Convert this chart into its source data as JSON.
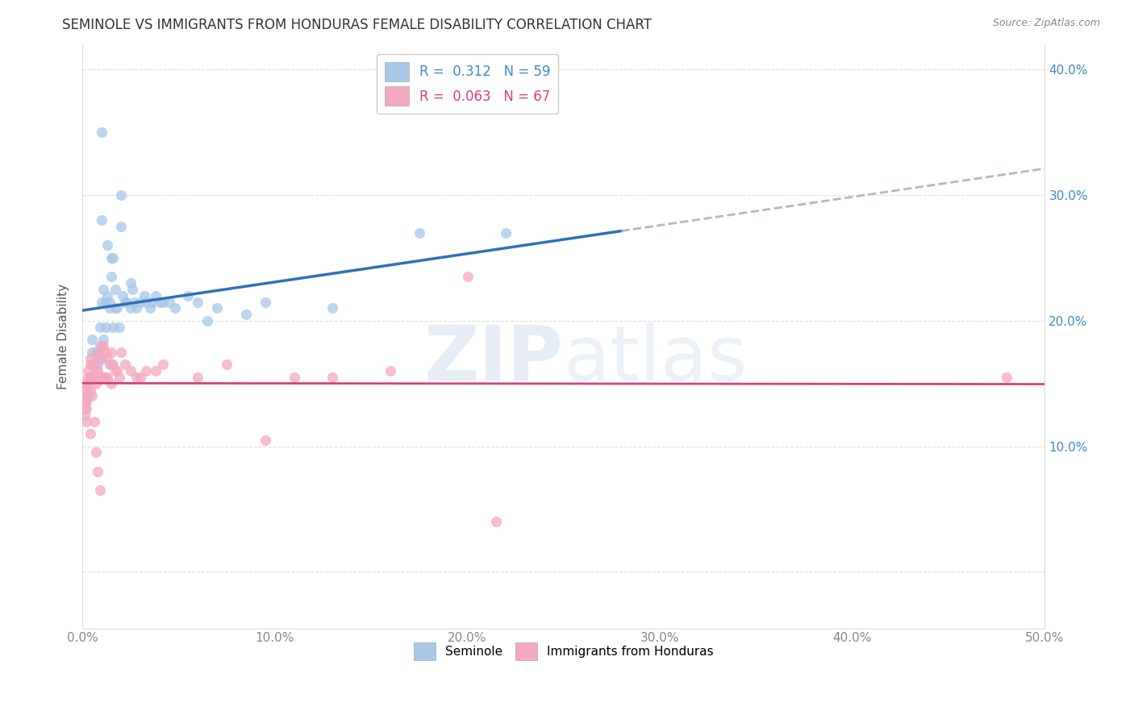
{
  "title": "SEMINOLE VS IMMIGRANTS FROM HONDURAS FEMALE DISABILITY CORRELATION CHART",
  "source": "Source: ZipAtlas.com",
  "ylabel": "Female Disability",
  "xlim": [
    0.0,
    0.5
  ],
  "ylim": [
    -0.045,
    0.42
  ],
  "xticks": [
    0.0,
    0.1,
    0.2,
    0.3,
    0.4,
    0.5
  ],
  "xtick_labels": [
    "0.0%",
    "10.0%",
    "20.0%",
    "30.0%",
    "40.0%",
    "50.0%"
  ],
  "yticks": [
    0.0,
    0.1,
    0.2,
    0.3,
    0.4
  ],
  "ytick_labels_left": [
    "",
    "10.0%",
    "20.0%",
    "30.0%",
    "40.0%"
  ],
  "ytick_labels_right": [
    "",
    "10.0%",
    "20.0%",
    "30.0%",
    "40.0%"
  ],
  "seminole_color": "#a8c8e8",
  "honduras_color": "#f4a8c0",
  "seminole_line_color": "#3070b8",
  "honduras_line_color": "#d84080",
  "dashed_line_color": "#b0b8c8",
  "R_seminole": 0.312,
  "N_seminole": 59,
  "R_honduras": 0.063,
  "N_honduras": 67,
  "watermark_zip": "ZIP",
  "watermark_atlas": "atlas",
  "background_color": "#ffffff",
  "legend_label_1": "Seminole",
  "legend_label_2": "Immigrants from Honduras",
  "seminole_x": [
    0.005,
    0.005,
    0.006,
    0.007,
    0.007,
    0.008,
    0.008,
    0.009,
    0.009,
    0.009,
    0.01,
    0.01,
    0.01,
    0.011,
    0.011,
    0.012,
    0.012,
    0.013,
    0.013,
    0.014,
    0.014,
    0.015,
    0.015,
    0.015,
    0.016,
    0.016,
    0.017,
    0.017,
    0.018,
    0.019,
    0.02,
    0.02,
    0.021,
    0.022,
    0.023,
    0.025,
    0.025,
    0.026,
    0.027,
    0.028,
    0.03,
    0.032,
    0.033,
    0.035,
    0.036,
    0.038,
    0.04,
    0.042,
    0.045,
    0.048,
    0.055,
    0.06,
    0.065,
    0.07,
    0.085,
    0.095,
    0.13,
    0.175,
    0.22
  ],
  "seminole_y": [
    0.185,
    0.175,
    0.165,
    0.155,
    0.175,
    0.17,
    0.165,
    0.195,
    0.18,
    0.17,
    0.35,
    0.28,
    0.215,
    0.225,
    0.185,
    0.215,
    0.195,
    0.26,
    0.22,
    0.215,
    0.21,
    0.25,
    0.235,
    0.165,
    0.25,
    0.195,
    0.225,
    0.21,
    0.21,
    0.195,
    0.3,
    0.275,
    0.22,
    0.215,
    0.215,
    0.23,
    0.21,
    0.225,
    0.215,
    0.21,
    0.215,
    0.22,
    0.215,
    0.21,
    0.215,
    0.22,
    0.215,
    0.215,
    0.215,
    0.21,
    0.22,
    0.215,
    0.2,
    0.21,
    0.205,
    0.215,
    0.21,
    0.27,
    0.27
  ],
  "honduras_x": [
    0.001,
    0.001,
    0.001,
    0.001,
    0.001,
    0.002,
    0.002,
    0.002,
    0.002,
    0.002,
    0.003,
    0.003,
    0.003,
    0.003,
    0.004,
    0.004,
    0.004,
    0.004,
    0.004,
    0.005,
    0.005,
    0.005,
    0.006,
    0.006,
    0.006,
    0.007,
    0.007,
    0.007,
    0.008,
    0.008,
    0.008,
    0.009,
    0.009,
    0.009,
    0.01,
    0.01,
    0.01,
    0.011,
    0.011,
    0.012,
    0.012,
    0.013,
    0.013,
    0.014,
    0.015,
    0.015,
    0.016,
    0.017,
    0.018,
    0.019,
    0.02,
    0.022,
    0.025,
    0.028,
    0.03,
    0.033,
    0.038,
    0.042,
    0.06,
    0.075,
    0.095,
    0.11,
    0.13,
    0.16,
    0.2,
    0.215,
    0.48
  ],
  "honduras_y": [
    0.15,
    0.145,
    0.135,
    0.13,
    0.125,
    0.145,
    0.14,
    0.135,
    0.13,
    0.12,
    0.16,
    0.155,
    0.15,
    0.14,
    0.17,
    0.165,
    0.155,
    0.145,
    0.11,
    0.165,
    0.155,
    0.14,
    0.165,
    0.155,
    0.12,
    0.16,
    0.15,
    0.095,
    0.175,
    0.16,
    0.08,
    0.175,
    0.155,
    0.065,
    0.18,
    0.17,
    0.155,
    0.18,
    0.155,
    0.175,
    0.155,
    0.17,
    0.155,
    0.165,
    0.175,
    0.15,
    0.165,
    0.16,
    0.16,
    0.155,
    0.175,
    0.165,
    0.16,
    0.155,
    0.155,
    0.16,
    0.16,
    0.165,
    0.155,
    0.165,
    0.105,
    0.155,
    0.155,
    0.16,
    0.235,
    0.04,
    0.155
  ]
}
